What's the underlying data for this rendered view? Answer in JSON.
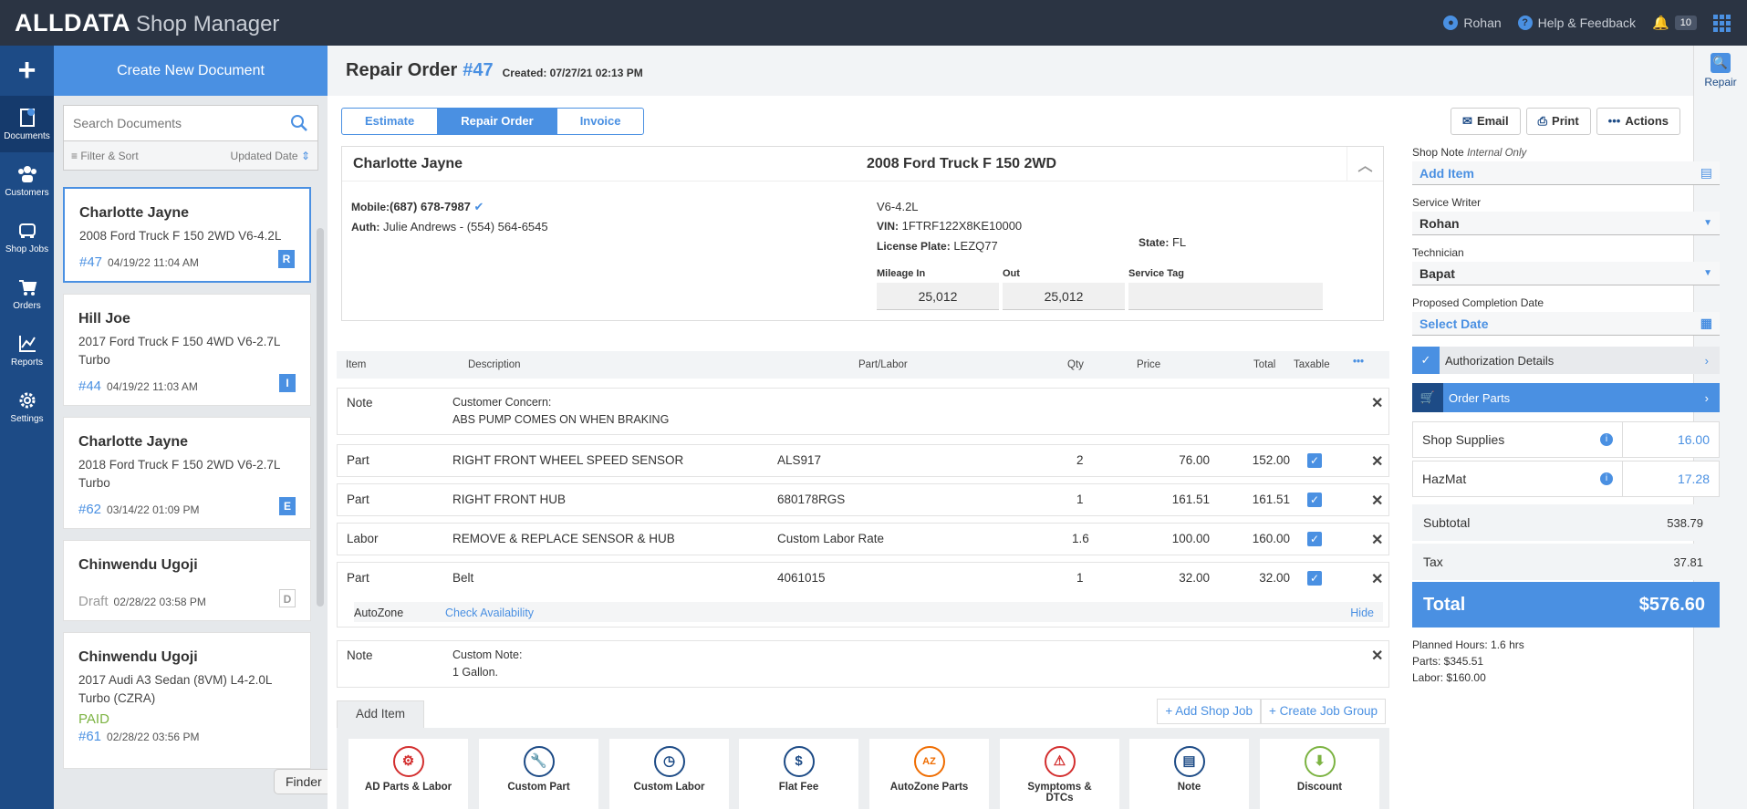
{
  "app": {
    "logo": "ALLDATA",
    "product": "Shop Manager"
  },
  "topbar": {
    "user": "Rohan",
    "help": "Help & Feedback",
    "notifications": "10"
  },
  "leftnav": [
    {
      "label": "Documents"
    },
    {
      "label": "Customers"
    },
    {
      "label": "Shop Jobs"
    },
    {
      "label": "Orders"
    },
    {
      "label": "Reports"
    },
    {
      "label": "Settings"
    }
  ],
  "docpanel": {
    "create_label": "Create New Document",
    "search_placeholder": "Search Documents",
    "filter_label": "Filter & Sort",
    "sort_label": "Updated Date",
    "cards": [
      {
        "name": "Charlotte Jayne",
        "vehicle": "2008 Ford Truck F 150 2WD V6-4.2L",
        "num": "#47",
        "date": "04/19/22 11:04 AM",
        "type": "R"
      },
      {
        "name": "Hill Joe",
        "vehicle": "2017 Ford Truck F 150 4WD V6-2.7L Turbo",
        "num": "#44",
        "date": "04/19/22 11:03 AM",
        "type": "I"
      },
      {
        "name": "Charlotte Jayne",
        "vehicle": "2018 Ford Truck F 150 2WD V6-2.7L Turbo",
        "num": "#62",
        "date": "03/14/22 01:09 PM",
        "type": "E"
      },
      {
        "name": "Chinwendu Ugoji",
        "vehicle": "",
        "num": "Draft",
        "date": "02/28/22 03:58 PM",
        "type": "D"
      },
      {
        "name": "Chinwendu Ugoji",
        "vehicle": "2017 Audi A3 Sedan (8VM) L4-2.0L Turbo (CZRA)",
        "status": "PAID",
        "num": "#61",
        "date": "02/28/22 03:56 PM"
      }
    ],
    "finder": "Finder"
  },
  "main": {
    "title": "Repair Order",
    "number": "#47",
    "created": "Created: 07/27/21 02:13 PM",
    "tabs": [
      "Estimate",
      "Repair Order",
      "Invoice"
    ],
    "actions": {
      "email": "Email",
      "print": "Print",
      "actions": "Actions"
    },
    "right_rail": "Repair"
  },
  "customer": {
    "name": "Charlotte Jayne",
    "mobile_label": "Mobile:",
    "mobile": "(687) 678-7987",
    "auth_label": "Auth:",
    "auth": "Julie Andrews - (554) 564-6545"
  },
  "vehicle": {
    "title": "2008 Ford Truck F 150 2WD",
    "engine": "V6-4.2L",
    "vin_label": "VIN:",
    "vin": "1FTRF122X8KE10000",
    "plate_label": "License Plate:",
    "plate": "LEZQ77",
    "state_label": "State:",
    "state": "FL",
    "mileage_in_label": "Mileage In",
    "mileage_in": "25,012",
    "out_label": "Out",
    "out": "25,012",
    "tag_label": "Service Tag"
  },
  "lines": {
    "headers": {
      "item": "Item",
      "description": "Description",
      "partlabor": "Part/Labor",
      "qty": "Qty",
      "price": "Price",
      "total": "Total",
      "taxable": "Taxable"
    },
    "note1": {
      "type": "Note",
      "label": "Customer Concern:",
      "text": "ABS PUMP COMES ON WHEN BRAKING"
    },
    "rows": [
      {
        "type": "Part",
        "desc": "RIGHT FRONT WHEEL SPEED SENSOR",
        "pl": "ALS917",
        "qty": "2",
        "price": "76.00",
        "total": "152.00"
      },
      {
        "type": "Part",
        "desc": "RIGHT FRONT HUB",
        "pl": "680178RGS",
        "qty": "1",
        "price": "161.51",
        "total": "161.51"
      },
      {
        "type": "Labor",
        "desc": "REMOVE & REPLACE SENSOR & HUB",
        "pl": "Custom Labor Rate",
        "qty": "1.6",
        "price": "100.00",
        "total": "160.00"
      },
      {
        "type": "Part",
        "desc": "Belt",
        "pl": "4061015",
        "qty": "1",
        "price": "32.00",
        "total": "32.00"
      }
    ],
    "autozone": {
      "label": "AutoZone",
      "check": "Check Availability",
      "hide": "Hide"
    },
    "note2": {
      "type": "Note",
      "label": "Custom Note:",
      "text": "1 Gallon."
    }
  },
  "bottom": {
    "add_item": "Add Item",
    "add_shop_job": "+ Add Shop Job",
    "create_job_group": "+ Create Job Group",
    "tiles": [
      "AD Parts & Labor",
      "Custom Part",
      "Custom Labor",
      "Flat Fee",
      "AutoZone Parts",
      "Symptoms & DTCs",
      "Note",
      "Discount"
    ]
  },
  "sidebar": {
    "shop_note_label": "Shop Note",
    "shop_note_sub": "Internal Only",
    "add_item": "Add Item",
    "service_writer_label": "Service Writer",
    "service_writer": "Rohan",
    "technician_label": "Technician",
    "technician": "Bapat",
    "completion_label": "Proposed Completion Date",
    "select_date": "Select Date",
    "auth_details": "Authorization Details",
    "order_parts": "Order Parts",
    "shop_supplies_label": "Shop Supplies",
    "shop_supplies": "16.00",
    "hazmat_label": "HazMat",
    "hazmat": "17.28",
    "subtotal_label": "Subtotal",
    "subtotal": "538.79",
    "tax_label": "Tax",
    "tax": "37.81",
    "total_label": "Total",
    "total": "$576.60",
    "planned_hours": "Planned Hours: 1.6 hrs",
    "parts_total": "Parts: $345.51",
    "labor_total": "Labor: $160.00"
  }
}
